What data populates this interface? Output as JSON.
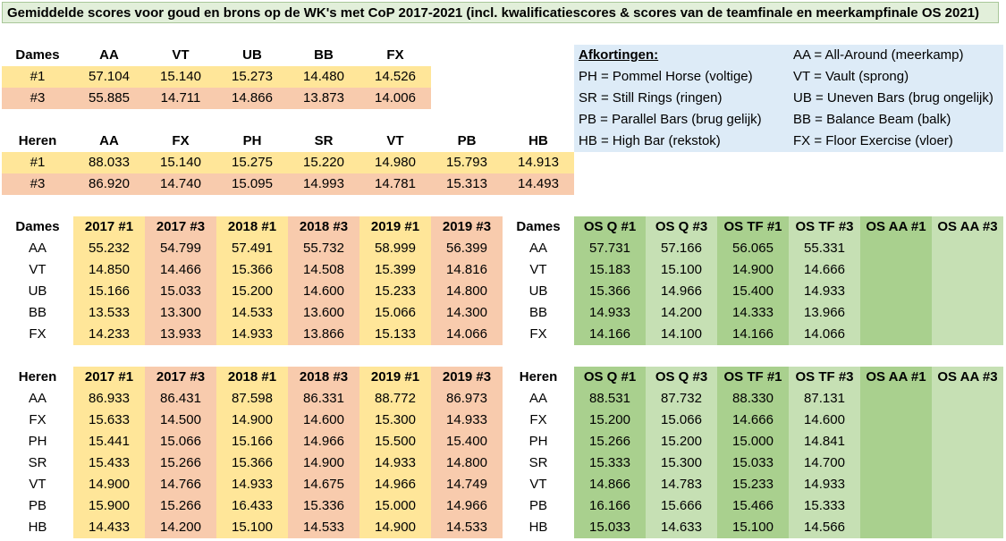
{
  "title": "Gemiddelde scores voor goud en brons op de WK's met CoP 2017-2021 (incl. kwalificatiescores & scores van de teamfinale en meerkampfinale OS 2021)",
  "colors": {
    "yellow": "#ffe699",
    "peach": "#f8cbad",
    "green_dark": "#a9d08e",
    "green_light": "#c6e0b4",
    "blue": "#ddebf7",
    "title_bg": "#e2efda"
  },
  "dames_summary": {
    "headers": [
      "Dames",
      "AA",
      "VT",
      "UB",
      "BB",
      "FX"
    ],
    "rows": [
      [
        "#1",
        "57.104",
        "15.140",
        "15.273",
        "14.480",
        "14.526"
      ],
      [
        "#3",
        "55.885",
        "14.711",
        "14.866",
        "13.873",
        "14.006"
      ]
    ]
  },
  "heren_summary": {
    "headers": [
      "Heren",
      "AA",
      "FX",
      "PH",
      "SR",
      "VT",
      "PB",
      "HB"
    ],
    "rows": [
      [
        "#1",
        "88.033",
        "15.140",
        "15.275",
        "15.220",
        "14.980",
        "15.793",
        "14.913"
      ],
      [
        "#3",
        "86.920",
        "14.740",
        "15.095",
        "14.993",
        "14.781",
        "15.313",
        "14.493"
      ]
    ]
  },
  "legend": {
    "heading": "Afkortingen:",
    "left": [
      "PH = Pommel Horse (voltige)",
      "SR = Still Rings (ringen)",
      "PB = Parallel Bars (brug gelijk)",
      "HB = High Bar (rekstok)"
    ],
    "right": [
      "AA = All-Around (meerkamp)",
      "VT = Vault (sprong)",
      "UB = Uneven Bars (brug ongelijk)",
      "BB = Balance Beam (balk)",
      "FX = Floor Exercise (vloer)"
    ]
  },
  "dames_wk": {
    "label": "Dames",
    "headers": [
      "2017 #1",
      "2017 #3",
      "2018 #1",
      "2018 #3",
      "2019 #1",
      "2019 #3"
    ],
    "rows": [
      [
        "AA",
        "55.232",
        "54.799",
        "57.491",
        "55.732",
        "58.999",
        "56.399"
      ],
      [
        "VT",
        "14.850",
        "14.466",
        "15.366",
        "14.508",
        "15.399",
        "14.816"
      ],
      [
        "UB",
        "15.166",
        "15.033",
        "15.200",
        "14.600",
        "15.233",
        "14.800"
      ],
      [
        "BB",
        "13.533",
        "13.300",
        "14.533",
        "13.600",
        "15.066",
        "14.300"
      ],
      [
        "FX",
        "14.233",
        "13.933",
        "14.933",
        "13.866",
        "15.133",
        "14.066"
      ]
    ]
  },
  "dames_os": {
    "label": "Dames",
    "headers": [
      "OS Q #1",
      "OS Q #3",
      "OS TF #1",
      "OS TF #3",
      "OS AA #1",
      "OS AA #3"
    ],
    "rows": [
      [
        "AA",
        "57.731",
        "57.166",
        "56.065",
        "55.331",
        "",
        ""
      ],
      [
        "VT",
        "15.183",
        "15.100",
        "14.900",
        "14.666",
        "",
        ""
      ],
      [
        "UB",
        "15.366",
        "14.966",
        "15.400",
        "14.933",
        "",
        ""
      ],
      [
        "BB",
        "14.933",
        "14.200",
        "14.333",
        "13.966",
        "",
        ""
      ],
      [
        "FX",
        "14.166",
        "14.100",
        "14.166",
        "14.066",
        "",
        ""
      ]
    ]
  },
  "heren_wk": {
    "label": "Heren",
    "headers": [
      "2017 #1",
      "2017 #3",
      "2018 #1",
      "2018 #3",
      "2019 #1",
      "2019 #3"
    ],
    "rows": [
      [
        "AA",
        "86.933",
        "86.431",
        "87.598",
        "86.331",
        "88.772",
        "86.973"
      ],
      [
        "FX",
        "15.633",
        "14.500",
        "14.900",
        "14.600",
        "15.300",
        "14.933"
      ],
      [
        "PH",
        "15.441",
        "15.066",
        "15.166",
        "14.966",
        "15.500",
        "15.400"
      ],
      [
        "SR",
        "15.433",
        "15.266",
        "15.366",
        "14.900",
        "14.933",
        "14.800"
      ],
      [
        "VT",
        "14.900",
        "14.766",
        "14.933",
        "14.675",
        "14.966",
        "14.749"
      ],
      [
        "PB",
        "15.900",
        "15.266",
        "16.433",
        "15.336",
        "15.000",
        "14.966"
      ],
      [
        "HB",
        "14.433",
        "14.200",
        "15.100",
        "14.533",
        "14.900",
        "14.533"
      ]
    ]
  },
  "heren_os": {
    "label": "Heren",
    "headers": [
      "OS Q #1",
      "OS Q #3",
      "OS TF #1",
      "OS TF #3",
      "OS AA #1",
      "OS AA #3"
    ],
    "rows": [
      [
        "AA",
        "88.531",
        "87.732",
        "88.330",
        "87.131",
        "",
        ""
      ],
      [
        "FX",
        "15.200",
        "15.066",
        "14.666",
        "14.600",
        "",
        ""
      ],
      [
        "PH",
        "15.266",
        "15.200",
        "15.000",
        "14.841",
        "",
        ""
      ],
      [
        "SR",
        "15.333",
        "15.300",
        "15.033",
        "14.700",
        "",
        ""
      ],
      [
        "VT",
        "14.866",
        "14.783",
        "15.233",
        "14.933",
        "",
        ""
      ],
      [
        "PB",
        "16.166",
        "15.666",
        "15.466",
        "15.333",
        "",
        ""
      ],
      [
        "HB",
        "15.033",
        "14.633",
        "15.100",
        "14.566",
        "",
        ""
      ]
    ]
  }
}
